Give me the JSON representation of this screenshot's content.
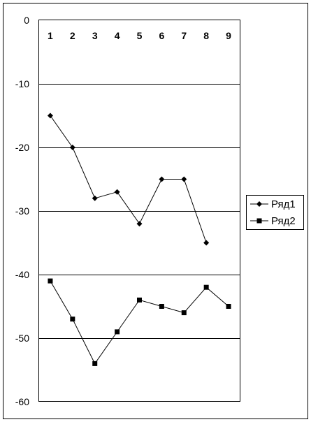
{
  "chart_data": {
    "type": "line",
    "title": "",
    "xlabel": "",
    "ylabel": "",
    "categories": [
      "1",
      "2",
      "3",
      "4",
      "5",
      "6",
      "7",
      "8",
      "9"
    ],
    "x_axis_position": "top",
    "ylim": [
      -60,
      0
    ],
    "yticks": [
      0,
      -10,
      -20,
      -30,
      -40,
      -50,
      -60
    ],
    "ytick_labels": [
      "0",
      "-10",
      "-20",
      "-30",
      "-40",
      "-50",
      "-60"
    ],
    "grid": "horizontal",
    "legend_position": "right",
    "series": [
      {
        "name": "Ряд1",
        "marker": "diamond",
        "color": "#000000",
        "values": [
          -15,
          -20,
          -28,
          -27,
          -32,
          -25,
          -25,
          -35,
          null
        ]
      },
      {
        "name": "Ряд2",
        "marker": "square",
        "color": "#000000",
        "values": [
          -41,
          -47,
          -54,
          -49,
          -44,
          -45,
          -46,
          -42,
          -45
        ]
      }
    ]
  }
}
